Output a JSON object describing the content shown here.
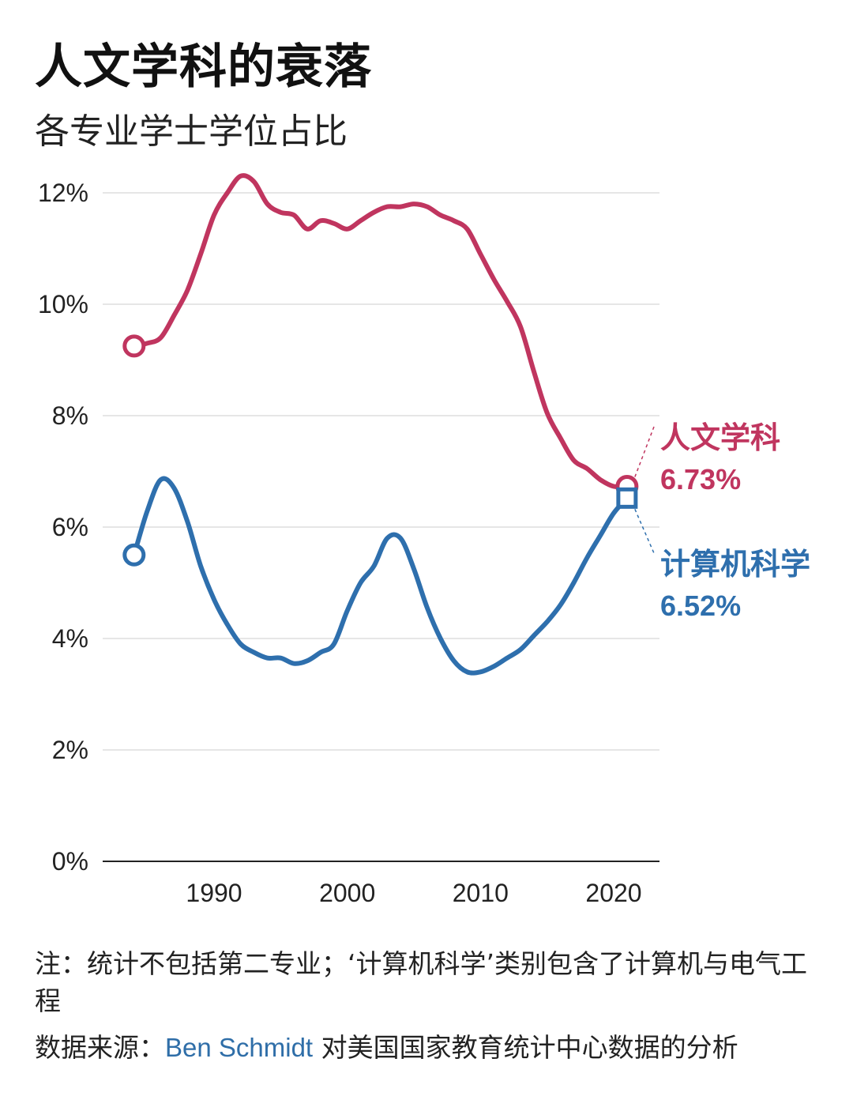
{
  "title": "人文学科的衰落",
  "subtitle": "各专业学士学位占比",
  "note": {
    "prefix": "注：",
    "text": "统计不包括第二专业；‘计算机科学’类别包含了计算机与电气工程"
  },
  "source": {
    "prefix": "数据来源：",
    "name": "Ben Schmidt",
    "text": " 对美国国家教育统计中心数据的分析"
  },
  "colors": {
    "humanities": "#c0355f",
    "computer_science": "#2e6fad",
    "grid": "#dddddd",
    "axis": "#222222"
  },
  "chart_data": {
    "type": "line",
    "title": "人文学科的衰落",
    "subtitle": "各专业学士学位占比",
    "xlabel": "",
    "ylabel": "",
    "xlim": [
      1982,
      2024
    ],
    "ylim": [
      0,
      12.5
    ],
    "x_ticks": [
      1990,
      2000,
      2010,
      2020
    ],
    "x_tick_labels": [
      "1990",
      "2000",
      "2010",
      "2020"
    ],
    "y_ticks": [
      0,
      2,
      4,
      6,
      8,
      10,
      12
    ],
    "y_tick_labels": [
      "0%",
      "2%",
      "4%",
      "6%",
      "8%",
      "10%",
      "12%"
    ],
    "grid": "horizontal",
    "series": [
      {
        "name": "人文学科",
        "end_label": "6.73%",
        "color": "#c0355f",
        "start_marker": "circle",
        "end_marker": "circle",
        "x": [
          1984,
          1985,
          1986,
          1987,
          1988,
          1989,
          1990,
          1991,
          1992,
          1993,
          1994,
          1995,
          1996,
          1997,
          1998,
          1999,
          2000,
          2001,
          2002,
          2003,
          2004,
          2005,
          2006,
          2007,
          2008,
          2009,
          2010,
          2011,
          2012,
          2013,
          2014,
          2015,
          2016,
          2017,
          2018,
          2019,
          2020,
          2021
        ],
        "y": [
          9.25,
          9.3,
          9.4,
          9.8,
          10.25,
          10.9,
          11.6,
          12.0,
          12.3,
          12.2,
          11.8,
          11.65,
          11.6,
          11.35,
          11.5,
          11.45,
          11.35,
          11.5,
          11.65,
          11.75,
          11.75,
          11.8,
          11.75,
          11.6,
          11.5,
          11.35,
          10.9,
          10.45,
          10.05,
          9.6,
          8.8,
          8.05,
          7.6,
          7.2,
          7.05,
          6.85,
          6.73,
          6.73
        ]
      },
      {
        "name": "计算机科学",
        "end_label": "6.52%",
        "color": "#2e6fad",
        "start_marker": "circle",
        "end_marker": "square",
        "x": [
          1984,
          1985,
          1986,
          1987,
          1988,
          1989,
          1990,
          1991,
          1992,
          1993,
          1994,
          1995,
          1996,
          1997,
          1998,
          1999,
          2000,
          2001,
          2002,
          2003,
          2004,
          2005,
          2006,
          2007,
          2008,
          2009,
          2010,
          2011,
          2012,
          2013,
          2014,
          2015,
          2016,
          2017,
          2018,
          2019,
          2020,
          2021
        ],
        "y": [
          5.5,
          6.3,
          6.85,
          6.7,
          6.1,
          5.3,
          4.7,
          4.25,
          3.9,
          3.75,
          3.65,
          3.65,
          3.55,
          3.6,
          3.75,
          3.9,
          4.5,
          5.0,
          5.3,
          5.8,
          5.8,
          5.25,
          4.55,
          4.0,
          3.6,
          3.4,
          3.4,
          3.5,
          3.65,
          3.8,
          4.05,
          4.3,
          4.6,
          5.0,
          5.45,
          5.85,
          6.25,
          6.52
        ]
      }
    ]
  }
}
